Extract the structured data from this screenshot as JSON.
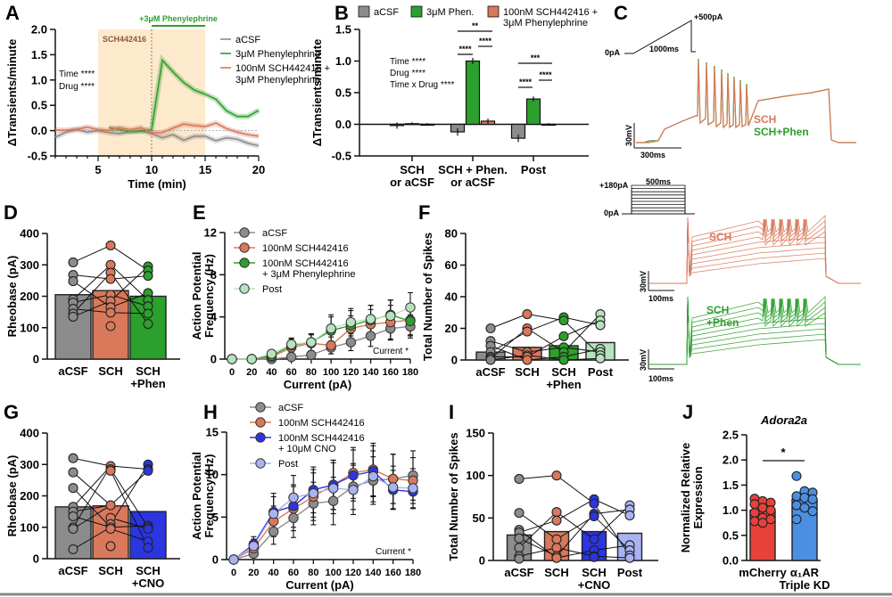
{
  "colors": {
    "acsf": "#8c8c8c",
    "phen": "#2ca02c",
    "sch": "#d9785a",
    "sch_dark": "#c8643f",
    "post_green": "#b6e3bd",
    "cno": "#2b35e0",
    "post_blue": "#a9b2f2",
    "mcherry": "#e8413c",
    "kd": "#4a90e2",
    "shade": "#fde9cc"
  },
  "chart_data": [
    {
      "id": "A",
      "panel_label": "A",
      "type": "line",
      "xlabel": "Time (min)",
      "ylabel": "ΔTransients/minute",
      "xlim": [
        1,
        20
      ],
      "ylim": [
        -0.5,
        2.0
      ],
      "xticks": [
        5,
        10,
        15,
        20
      ],
      "yticks": [
        "-0.5",
        "0.0",
        "0.5",
        "1.0",
        "1.5",
        "2.0"
      ],
      "shade_label": "SCH442416",
      "shade_range": [
        5,
        15
      ],
      "drug_bar_label": "+3μM Phenylephrine",
      "drug_bar_range": [
        10,
        15
      ],
      "annotations": [
        "Time ****",
        "Drug ****"
      ],
      "series": [
        {
          "name": "aCSF",
          "color_key": "acsf",
          "x": [
            1,
            2,
            3,
            4,
            5,
            6,
            7,
            8,
            9,
            10,
            11,
            12,
            13,
            14,
            15,
            16,
            17,
            18,
            19,
            20
          ],
          "y": [
            -0.13,
            -0.03,
            0.02,
            -0.03,
            0.0,
            -0.04,
            -0.06,
            -0.02,
            0.0,
            -0.06,
            -0.14,
            -0.08,
            -0.19,
            -0.11,
            -0.11,
            -0.2,
            -0.14,
            -0.17,
            -0.25,
            -0.3
          ]
        },
        {
          "name": "3μM Phenylephrine",
          "color_key": "phen",
          "x": [
            6,
            7,
            8,
            9,
            10,
            11,
            12,
            13,
            14,
            15,
            16,
            17,
            18,
            19,
            20
          ],
          "y": [
            0.06,
            0.02,
            -0.02,
            -0.01,
            0.02,
            1.39,
            1.16,
            0.95,
            0.8,
            0.72,
            0.62,
            0.39,
            0.28,
            0.28,
            0.4
          ]
        },
        {
          "name": "100nM SCH442416 + 3μM Phenylephrine",
          "color_key": "sch",
          "x": [
            1,
            2,
            3,
            4,
            5,
            6,
            7,
            8,
            9,
            10,
            11,
            12,
            13,
            14,
            15,
            16,
            17,
            18,
            19,
            20
          ],
          "y": [
            0.01,
            0.01,
            0.03,
            0.07,
            0.02,
            0.0,
            0.06,
            0.02,
            0.06,
            -0.04,
            -0.04,
            0.05,
            0.13,
            0.1,
            0.08,
            0.15,
            0.04,
            -0.03,
            -0.08,
            -0.11
          ]
        }
      ]
    },
    {
      "id": "B",
      "panel_label": "B",
      "type": "bar",
      "ylabel": "ΔTransients/minute",
      "ylim": [
        -0.5,
        1.5
      ],
      "yticks": [
        "-0.5",
        "0.0",
        "0.5",
        "1.0",
        "1.5"
      ],
      "categories": [
        "SCH\nor aCSF",
        "SCH + Phen.\nor aCSF",
        "Post"
      ],
      "category_lines": [
        [
          "SCH",
          "or aCSF"
        ],
        [
          "SCH + Phen.",
          "or aCSF"
        ],
        [
          "Post",
          ""
        ]
      ],
      "series": [
        {
          "name": "aCSF",
          "color_key": "acsf",
          "values": [
            -0.02,
            -0.12,
            -0.22
          ],
          "errors": [
            0.05,
            0.06,
            0.06
          ]
        },
        {
          "name": "3μM Phen.",
          "color_key": "phen",
          "values": [
            0.01,
            1.0,
            0.4
          ],
          "errors": [
            0.02,
            0.05,
            0.04
          ]
        },
        {
          "name": "100nM SCH442416 + 3μM Phenylephrine",
          "legend_lines": [
            "100nM SCH442416 +",
            "3μM Phenylephrine"
          ],
          "color_key": "sch",
          "values": [
            0.0,
            0.05,
            0.0
          ],
          "errors": [
            0.02,
            0.04,
            0.02
          ]
        }
      ],
      "annotations": [
        "Time ****",
        "Drug ****",
        "Time x Drug ****"
      ],
      "significance": [
        {
          "group": 1,
          "pair": [
            0,
            1
          ],
          "label": "****"
        },
        {
          "group": 1,
          "pair": [
            1,
            2
          ],
          "label": "****"
        },
        {
          "group": 1,
          "pair": [
            0,
            2
          ],
          "label": "**"
        },
        {
          "group": 2,
          "pair": [
            0,
            1
          ],
          "label": "****"
        },
        {
          "group": 2,
          "pair": [
            1,
            2
          ],
          "label": "****"
        },
        {
          "group": 2,
          "pair": [
            0,
            2
          ],
          "label": "***"
        }
      ]
    },
    {
      "id": "D",
      "panel_label": "D",
      "type": "bar",
      "ylabel": "Rheobase (pA)",
      "ylim": [
        0,
        400
      ],
      "yticks": [
        "0",
        "100",
        "200",
        "300",
        "400"
      ],
      "categories": [
        [
          "aCSF",
          ""
        ],
        [
          "SCH",
          ""
        ],
        [
          "SCH",
          "+Phen"
        ]
      ],
      "bar_color_keys": [
        "acsf",
        "sch",
        "phen"
      ],
      "values": [
        205,
        218,
        200
      ],
      "points": [
        [
          308,
          268,
          248,
          190,
          180,
          160,
          145,
          135
        ],
        [
          362,
          300,
          275,
          255,
          205,
          185,
          165,
          148,
          105
        ],
        [
          295,
          282,
          265,
          210,
          188,
          168,
          145,
          112
        ]
      ],
      "pairs": [
        [
          308,
          362
        ],
        [
          268,
          300
        ],
        [
          248,
          275
        ],
        [
          190,
          255
        ],
        [
          180,
          205
        ],
        [
          160,
          185
        ],
        [
          145,
          165
        ],
        [
          135,
          148
        ],
        [
          180,
          300
        ],
        [
          160,
          105
        ]
      ],
      "pairs_2": [
        [
          362,
          282
        ],
        [
          300,
          188
        ],
        [
          275,
          295
        ],
        [
          255,
          265
        ],
        [
          205,
          168
        ],
        [
          185,
          210
        ],
        [
          165,
          145
        ],
        [
          148,
          112
        ],
        [
          105,
          145
        ]
      ]
    },
    {
      "id": "E",
      "panel_label": "E",
      "type": "line",
      "xlabel": "Current (pA)",
      "ylabel": "Action Potential\nFrequency (Hz)",
      "ylabel_lines": [
        "Action Potential",
        "Frequency (Hz)"
      ],
      "xlim": [
        0,
        180
      ],
      "ylim": [
        0,
        12
      ],
      "xticks": [
        "0",
        "20",
        "40",
        "60",
        "80",
        "100",
        "120",
        "140",
        "160",
        "180"
      ],
      "yticks": [
        "0",
        "4",
        "8",
        "12"
      ],
      "annotation": "Current *",
      "x": [
        0,
        20,
        40,
        60,
        80,
        100,
        120,
        140,
        160,
        180
      ],
      "series": [
        {
          "name": "aCSF",
          "color_key": "acsf",
          "y": [
            0,
            0,
            0,
            0.2,
            0.4,
            1.1,
            1.6,
            2.2,
            2.9,
            3.1
          ],
          "err": [
            0,
            0,
            0.1,
            0.3,
            0.4,
            0.6,
            0.8,
            1.0,
            1.1,
            1.1
          ]
        },
        {
          "name": "100nM SCH442416",
          "color_key": "sch",
          "y": [
            0,
            0,
            0.2,
            1.1,
            1.5,
            1.3,
            2.9,
            3.3,
            3.5,
            3.7
          ],
          "err": [
            0,
            0,
            0.2,
            0.5,
            0.8,
            0.8,
            1.2,
            1.4,
            1.6,
            1.5
          ]
        },
        {
          "name": "100nM SCH442416 + 3μM Phenylephrine",
          "legend_lines": [
            "100nM SCH442416",
            "+ 3μM Phenylephrine"
          ],
          "color_key": "phen",
          "y": [
            0,
            0,
            0.3,
            1.3,
            1.6,
            2.7,
            3.2,
            3.7,
            4.2,
            3.6
          ],
          "err": [
            0,
            0,
            0.3,
            0.6,
            0.8,
            1.3,
            1.4,
            1.4,
            1.4,
            1.3
          ]
        },
        {
          "name": "Post",
          "color_key": "post_green",
          "y": [
            0,
            0,
            0.5,
            1.4,
            1.6,
            2.9,
            3.5,
            3.8,
            4.1,
            4.9
          ],
          "err": [
            0,
            0,
            0.3,
            0.6,
            0.8,
            1.3,
            1.3,
            1.3,
            1.5,
            1.4
          ]
        }
      ]
    },
    {
      "id": "F",
      "panel_label": "F",
      "type": "bar",
      "ylabel": "Total Number of Spikes",
      "ylim": [
        0,
        80
      ],
      "yticks": [
        "0",
        "20",
        "40",
        "60",
        "80"
      ],
      "categories": [
        [
          "aCSF",
          ""
        ],
        [
          "SCH",
          ""
        ],
        [
          "SCH",
          "+Phen"
        ],
        [
          "Post",
          ""
        ]
      ],
      "bar_color_keys": [
        "acsf",
        "sch",
        "phen",
        "post_green"
      ],
      "values": [
        5,
        8,
        9,
        11
      ],
      "points": [
        [
          20,
          12,
          9,
          5,
          2,
          1,
          0
        ],
        [
          29,
          20,
          18,
          5,
          3,
          2,
          0
        ],
        [
          27,
          25,
          15,
          8,
          5,
          2,
          0
        ],
        [
          29,
          25,
          22,
          7,
          5,
          3,
          1
        ]
      ]
    },
    {
      "id": "G",
      "panel_label": "G",
      "type": "bar",
      "ylabel": "Rheobase (pA)",
      "ylim": [
        0,
        400
      ],
      "yticks": [
        "0",
        "100",
        "200",
        "300",
        "400"
      ],
      "categories": [
        [
          "aCSF",
          ""
        ],
        [
          "SCH",
          ""
        ],
        [
          "SCH",
          "+CNO"
        ]
      ],
      "bar_color_keys": [
        "acsf",
        "sch",
        "cno"
      ],
      "values": [
        165,
        168,
        150
      ],
      "points": [
        [
          320,
          275,
          225,
          165,
          150,
          135,
          100,
          95,
          30
        ],
        [
          295,
          285,
          280,
          170,
          130,
          110,
          100,
          95,
          40
        ],
        [
          300,
          285,
          280,
          105,
          100,
          95,
          55,
          35
        ]
      ]
    },
    {
      "id": "H",
      "panel_label": "H",
      "type": "line",
      "xlabel": "Current (pA)",
      "ylabel": "Action Potential\nFrequency (Hz)",
      "ylabel_lines": [
        "Action Potential",
        "Frequency (Hz)"
      ],
      "xlim": [
        0,
        180
      ],
      "ylim": [
        0,
        15
      ],
      "xticks": [
        "0",
        "20",
        "40",
        "60",
        "80",
        "100",
        "120",
        "140",
        "160",
        "180"
      ],
      "yticks": [
        "0",
        "5",
        "10",
        "15"
      ],
      "annotation": "Current *",
      "x": [
        0,
        20,
        40,
        60,
        80,
        100,
        120,
        140,
        160,
        180
      ],
      "series": [
        {
          "name": "aCSF",
          "color_key": "acsf",
          "y": [
            0,
            0.7,
            3.3,
            4.9,
            6.6,
            6.9,
            8.6,
            9.3,
            9.5,
            9.9
          ],
          "err": [
            0,
            0.4,
            1.5,
            2.3,
            2.5,
            2.8,
            2.7,
            2.8,
            2.9,
            2.9
          ]
        },
        {
          "name": "100nM SCH442416",
          "color_key": "sch",
          "y": [
            0,
            1.3,
            4.5,
            6.0,
            7.4,
            8.8,
            10.2,
            10.6,
            9.5,
            9.3
          ],
          "err": [
            0,
            0.6,
            1.8,
            2.6,
            2.8,
            2.9,
            3.0,
            3.1,
            2.9,
            2.7
          ]
        },
        {
          "name": "100nM SCH442416 + 10μM CNO",
          "legend_lines": [
            "100nM SCH442416",
            "+ 10μM CNO"
          ],
          "color_key": "cno",
          "y": [
            0,
            1.8,
            5.6,
            6.3,
            8.2,
            8.8,
            9.9,
            10.4,
            8.2,
            8.0
          ],
          "err": [
            0,
            0.9,
            2.2,
            2.5,
            2.7,
            2.9,
            3.0,
            3.0,
            2.3,
            2.0
          ]
        },
        {
          "name": "Post",
          "color_key": "post_blue",
          "y": [
            0,
            1.6,
            5.4,
            7.3,
            7.8,
            8.4,
            8.2,
            9.8,
            8.5,
            8.4
          ],
          "err": [
            0,
            0.8,
            2.0,
            2.6,
            2.8,
            3.0,
            2.9,
            3.0,
            2.5,
            2.3
          ]
        }
      ]
    },
    {
      "id": "I",
      "panel_label": "I",
      "type": "bar",
      "ylabel": "Total Number of Spikes",
      "ylim": [
        0,
        150
      ],
      "yticks": [
        "0",
        "50",
        "100",
        "150"
      ],
      "categories": [
        [
          "aCSF",
          ""
        ],
        [
          "SCH",
          ""
        ],
        [
          "SCH",
          "+CNO"
        ],
        [
          "Post",
          ""
        ]
      ],
      "bar_color_keys": [
        "acsf",
        "sch",
        "cno",
        "post_blue"
      ],
      "values": [
        30,
        34,
        34,
        32
      ],
      "points": [
        [
          96,
          56,
          36,
          33,
          26,
          15,
          5,
          2
        ],
        [
          100,
          57,
          47,
          25,
          15,
          5,
          3
        ],
        [
          72,
          67,
          55,
          52,
          25,
          12,
          5,
          4
        ],
        [
          65,
          60,
          53,
          18,
          12,
          6,
          3
        ]
      ]
    },
    {
      "id": "J",
      "panel_label": "J",
      "type": "bar",
      "title": "Adora2a",
      "ylabel": "Normalized Relative\nExpression",
      "ylabel_lines": [
        "Normalized Relative",
        "Expression"
      ],
      "ylim": [
        0,
        2.5
      ],
      "yticks": [
        "0.0",
        "0.5",
        "1.0",
        "1.5",
        "2.0",
        "2.5"
      ],
      "categories": [
        [
          "mCherry",
          ""
        ],
        [
          "α₁AR",
          "Triple KD"
        ]
      ],
      "bar_color_keys": [
        "mcherry",
        "kd"
      ],
      "values": [
        1.0,
        1.22
      ],
      "points": [
        [
          1.23,
          1.18,
          1.15,
          1.12,
          1.05,
          1.0,
          0.95,
          0.85,
          0.82,
          0.78,
          0.75
        ],
        [
          1.68,
          1.38,
          1.35,
          1.28,
          1.25,
          1.22,
          1.1,
          1.05,
          0.98,
          0.82
        ]
      ],
      "significance": "*"
    }
  ],
  "panel_C": {
    "label": "C",
    "ramp": {
      "start_label": "0pA",
      "end_label": "+500pA",
      "duration_label": "1000ms"
    },
    "scale": {
      "voltage": "30mV",
      "time": "300ms"
    },
    "legend": [
      "SCH",
      "SCH+Phen"
    ],
    "step": {
      "top_label": "+180pA",
      "bottom_label": "0pA",
      "duration_label": "500ms"
    },
    "trace_sch": {
      "label": "SCH",
      "scale_v": "30mV",
      "scale_t": "100ms"
    },
    "trace_phen": {
      "label_lines": [
        "SCH",
        "+Phen"
      ],
      "scale_v": "30mV",
      "scale_t": "100ms"
    }
  }
}
